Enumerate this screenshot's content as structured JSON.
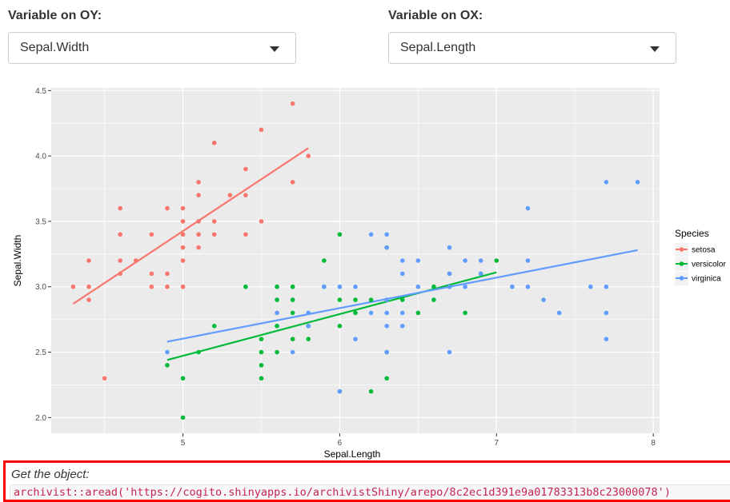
{
  "controls": {
    "oy_label": "Variable on OY:",
    "oy_value": "Sepal.Width",
    "ox_label": "Variable on OX:",
    "ox_value": "Sepal.Length",
    "caret_icon": "chevron-down-icon"
  },
  "footer": {
    "title": "Get the object:",
    "code": "archivist::aread('https://cogito.shinyapps.io/archivistShiny/arepo/8c2ec1d391e9a01783313b8c23000078')"
  },
  "chart_data": {
    "type": "scatter",
    "xlabel": "Sepal.Length",
    "ylabel": "Sepal.Width",
    "xlim": [
      4.16,
      8.04
    ],
    "ylim": [
      1.88,
      4.52
    ],
    "xticks": [
      5,
      6,
      7,
      8
    ],
    "yticks": [
      2.0,
      2.5,
      3.0,
      3.5,
      4.0,
      4.5
    ],
    "ytick_labels": [
      "2.0",
      "2.5",
      "3.0",
      "3.5",
      "4.0",
      "4.5"
    ],
    "legend_title": "Species",
    "legend_position": "right",
    "background": "#ebebeb",
    "series": [
      {
        "name": "setosa",
        "color": "#f8766d",
        "fit": {
          "x": [
            4.3,
            5.8
          ],
          "y": [
            2.87,
            4.06
          ]
        },
        "points": [
          [
            4.3,
            3.0
          ],
          [
            4.4,
            3.2
          ],
          [
            4.4,
            3.0
          ],
          [
            4.4,
            2.9
          ],
          [
            4.5,
            2.3
          ],
          [
            4.6,
            3.6
          ],
          [
            4.6,
            3.4
          ],
          [
            4.6,
            3.2
          ],
          [
            4.6,
            3.1
          ],
          [
            4.7,
            3.2
          ],
          [
            4.8,
            3.4
          ],
          [
            4.8,
            3.1
          ],
          [
            4.8,
            3.0
          ],
          [
            4.9,
            3.6
          ],
          [
            4.9,
            3.1
          ],
          [
            4.9,
            3.0
          ],
          [
            5.0,
            3.6
          ],
          [
            5.0,
            3.5
          ],
          [
            5.0,
            3.4
          ],
          [
            5.0,
            3.3
          ],
          [
            5.0,
            3.2
          ],
          [
            5.0,
            3.0
          ],
          [
            5.1,
            3.8
          ],
          [
            5.1,
            3.7
          ],
          [
            5.1,
            3.5
          ],
          [
            5.1,
            3.4
          ],
          [
            5.1,
            3.3
          ],
          [
            5.2,
            4.1
          ],
          [
            5.2,
            3.5
          ],
          [
            5.2,
            3.4
          ],
          [
            5.3,
            3.7
          ],
          [
            5.4,
            3.9
          ],
          [
            5.4,
            3.7
          ],
          [
            5.4,
            3.4
          ],
          [
            5.5,
            4.2
          ],
          [
            5.5,
            3.5
          ],
          [
            5.7,
            4.4
          ],
          [
            5.7,
            3.8
          ],
          [
            5.8,
            4.0
          ]
        ]
      },
      {
        "name": "versicolor",
        "color": "#00ba38",
        "fit": {
          "x": [
            4.9,
            7.0
          ],
          "y": [
            2.44,
            3.11
          ]
        },
        "points": [
          [
            4.9,
            2.4
          ],
          [
            5.0,
            2.3
          ],
          [
            5.0,
            2.0
          ],
          [
            5.1,
            2.5
          ],
          [
            5.2,
            2.7
          ],
          [
            5.4,
            3.0
          ],
          [
            5.5,
            2.6
          ],
          [
            5.5,
            2.5
          ],
          [
            5.5,
            2.4
          ],
          [
            5.5,
            2.3
          ],
          [
            5.6,
            3.0
          ],
          [
            5.6,
            2.9
          ],
          [
            5.6,
            2.7
          ],
          [
            5.6,
            2.5
          ],
          [
            5.7,
            3.0
          ],
          [
            5.7,
            2.9
          ],
          [
            5.7,
            2.8
          ],
          [
            5.7,
            2.6
          ],
          [
            5.8,
            2.7
          ],
          [
            5.8,
            2.6
          ],
          [
            5.9,
            3.2
          ],
          [
            5.9,
            3.0
          ],
          [
            6.0,
            3.4
          ],
          [
            6.0,
            2.9
          ],
          [
            6.0,
            2.7
          ],
          [
            6.0,
            2.2
          ],
          [
            6.1,
            2.9
          ],
          [
            6.1,
            2.8
          ],
          [
            6.2,
            2.9
          ],
          [
            6.2,
            2.2
          ],
          [
            6.3,
            3.3
          ],
          [
            6.3,
            2.5
          ],
          [
            6.3,
            2.3
          ],
          [
            6.4,
            2.9
          ],
          [
            6.5,
            2.8
          ],
          [
            6.6,
            3.0
          ],
          [
            6.6,
            2.9
          ],
          [
            6.7,
            3.1
          ],
          [
            6.7,
            3.0
          ],
          [
            6.8,
            2.8
          ],
          [
            6.9,
            3.1
          ],
          [
            7.0,
            3.2
          ]
        ]
      },
      {
        "name": "virginica",
        "color": "#619cff",
        "fit": {
          "x": [
            4.9,
            7.9
          ],
          "y": [
            2.58,
            3.28
          ]
        },
        "points": [
          [
            4.9,
            2.5
          ],
          [
            5.6,
            2.8
          ],
          [
            5.7,
            2.5
          ],
          [
            5.8,
            2.8
          ],
          [
            5.8,
            2.7
          ],
          [
            5.9,
            3.0
          ],
          [
            6.0,
            3.0
          ],
          [
            6.0,
            2.2
          ],
          [
            6.1,
            3.0
          ],
          [
            6.1,
            2.6
          ],
          [
            6.2,
            3.4
          ],
          [
            6.2,
            2.8
          ],
          [
            6.3,
            3.4
          ],
          [
            6.3,
            3.3
          ],
          [
            6.3,
            2.9
          ],
          [
            6.3,
            2.8
          ],
          [
            6.3,
            2.7
          ],
          [
            6.3,
            2.5
          ],
          [
            6.4,
            3.2
          ],
          [
            6.4,
            3.1
          ],
          [
            6.4,
            2.8
          ],
          [
            6.4,
            2.7
          ],
          [
            6.5,
            3.2
          ],
          [
            6.5,
            3.0
          ],
          [
            6.7,
            3.3
          ],
          [
            6.7,
            3.1
          ],
          [
            6.7,
            3.0
          ],
          [
            6.7,
            2.5
          ],
          [
            6.8,
            3.2
          ],
          [
            6.8,
            3.0
          ],
          [
            6.9,
            3.2
          ],
          [
            6.9,
            3.1
          ],
          [
            7.1,
            3.0
          ],
          [
            7.2,
            3.6
          ],
          [
            7.2,
            3.2
          ],
          [
            7.2,
            3.0
          ],
          [
            7.3,
            2.9
          ],
          [
            7.4,
            2.8
          ],
          [
            7.6,
            3.0
          ],
          [
            7.7,
            3.8
          ],
          [
            7.7,
            3.0
          ],
          [
            7.7,
            2.8
          ],
          [
            7.7,
            2.6
          ],
          [
            7.9,
            3.8
          ]
        ]
      }
    ]
  }
}
